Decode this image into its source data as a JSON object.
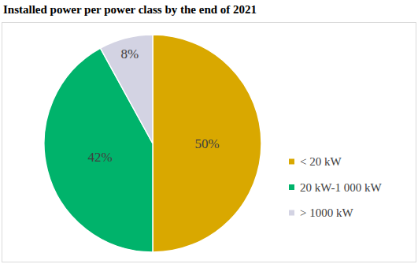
{
  "chart_data": {
    "type": "pie",
    "title": "Installed power per power class by the end of 2021",
    "categories": [
      "< 20 kW",
      "20 kW-1 000 kW",
      "> 1000 kW"
    ],
    "values": [
      50,
      42,
      8
    ],
    "value_labels": [
      "50%",
      "42%",
      "8%"
    ],
    "colors": [
      "#d9a800",
      "#00b36b",
      "#d3d3e3"
    ],
    "data_labels": true,
    "legend": "right"
  }
}
